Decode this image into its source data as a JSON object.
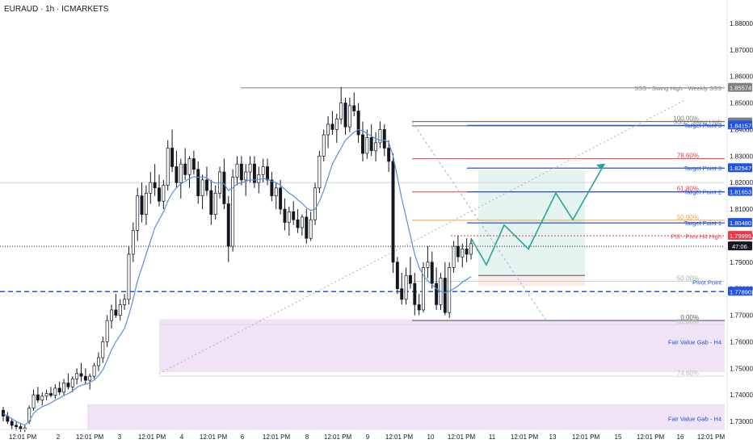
{
  "header": {
    "title": "EURAUD · 1h · ICMARKETS"
  },
  "chart_data": {
    "type": "candlestick",
    "symbol": "EURAUD",
    "timeframe": "1h",
    "exchange": "ICMARKETS",
    "ylim": [
      1.726,
      1.891
    ],
    "y_ticks": [
      "1.88000",
      "1.87000",
      "1.86000",
      "1.85000",
      "1.84000",
      "1.83000",
      "1.82000",
      "1.81000",
      "1.80000",
      "1.79000",
      "1.78000",
      "1.77000",
      "1.76000",
      "1.75000",
      "1.74000",
      "1.73000"
    ],
    "x_ticks": [
      "12:01 PM",
      "2",
      "12:01 PM",
      "3",
      "12:01 PM",
      "4",
      "12:01 PM",
      "6",
      "12:01 PM",
      "8",
      "12:01 PM",
      "9",
      "12:01 PM",
      "10",
      "12:01 PM",
      "11",
      "12:01 PM",
      "13",
      "12:01 PM",
      "15",
      "12:01 PM",
      "16",
      "12:01 PM"
    ],
    "current_price_label": "47:06",
    "colors": {
      "up": "#ffffff",
      "down": "#131722",
      "wick": "#131722",
      "ma": "#5b8fd9",
      "blue_level": "#1e53e5",
      "red_level": "#f23645",
      "orange_level": "#f2a33a",
      "fvg_fill": "#ead9f2",
      "zigzag": "#26a69a",
      "target_zone": "#e6f4f1",
      "stop_zone": "#fbecec"
    },
    "horizontal_levels": [
      {
        "name": "SSS - Swing High - Weekly SSS",
        "price": 1.85574,
        "badge": "1.85574",
        "color": "#7f7f7f"
      },
      {
        "name": "SSS - Swing High",
        "price": 1.84269,
        "badge": "1.84269",
        "color": "#7f7f7f"
      },
      {
        "name": "Target Point 3",
        "price": 1.84157,
        "badge": "1.84157",
        "color": "#1e53e5"
      },
      {
        "name": "Target Point 3",
        "price": 1.82547,
        "badge": "1.82547",
        "color": "#1e53e5"
      },
      {
        "name": "Target Point 2",
        "price": 1.81653,
        "badge": "1.81653",
        "color": "#1e53e5"
      },
      {
        "name": "Target Point 1",
        "price": 1.8048,
        "badge": "1.80480",
        "color": "#1e53e5"
      },
      {
        "name": "P0I - Prev H4 High",
        "price": 1.79995,
        "badge": "1.79995",
        "color": "#f23645"
      },
      {
        "name": "Pivot Point",
        "price": 1.7789,
        "badge": "1.77890",
        "color": "#1e53e5"
      }
    ],
    "fib_levels": [
      {
        "label": "100.00%",
        "price": 1.843,
        "color": "#7f7f7f"
      },
      {
        "label": "78.60%",
        "price": 1.829,
        "color": "#f23645"
      },
      {
        "label": "61.80%",
        "price": 1.8165,
        "color": "#f23645"
      },
      {
        "label": "50.00%",
        "price": 1.8058,
        "color": "#f2a33a"
      },
      {
        "label": "50.00%",
        "price": 1.7828,
        "color": "#aaaaaa"
      },
      {
        "label": "0.00%",
        "price": 1.768,
        "color": "#555555"
      },
      {
        "label": "61.80%",
        "price": 1.7665,
        "color": "#bbbbbb"
      },
      {
        "label": "74.60%",
        "price": 1.747,
        "color": "#bbbbbb"
      }
    ],
    "zones": [
      {
        "name": "Fair Value Gab - H4",
        "top": 1.7685,
        "bottom": 1.7486
      },
      {
        "name": "Fair Value Gab - H4",
        "top": 1.7365,
        "bottom": 1.726
      }
    ],
    "candles": [
      [
        1.7342,
        1.7355,
        1.73,
        1.732
      ],
      [
        1.732,
        1.7335,
        1.729,
        1.73
      ],
      [
        1.73,
        1.731,
        1.727,
        1.7285
      ],
      [
        1.7285,
        1.73,
        1.7265,
        1.728
      ],
      [
        1.728,
        1.729,
        1.726,
        1.727
      ],
      [
        1.727,
        1.7285,
        1.726,
        1.7275
      ],
      [
        1.73,
        1.736,
        1.729,
        1.735
      ],
      [
        1.735,
        1.742,
        1.734,
        1.74
      ],
      [
        1.74,
        1.743,
        1.737,
        1.738
      ],
      [
        1.738,
        1.741,
        1.736,
        1.7395
      ],
      [
        1.7395,
        1.742,
        1.738,
        1.7405
      ],
      [
        1.7405,
        1.743,
        1.739,
        1.7398
      ],
      [
        1.7398,
        1.744,
        1.7385,
        1.7425
      ],
      [
        1.7425,
        1.745,
        1.74,
        1.741
      ],
      [
        1.741,
        1.746,
        1.7395,
        1.7445
      ],
      [
        1.7445,
        1.748,
        1.742,
        1.743
      ],
      [
        1.743,
        1.747,
        1.741,
        1.746
      ],
      [
        1.746,
        1.75,
        1.744,
        1.748
      ],
      [
        1.748,
        1.752,
        1.745,
        1.747
      ],
      [
        1.747,
        1.75,
        1.744,
        1.7455
      ],
      [
        1.7455,
        1.748,
        1.742,
        1.747
      ],
      [
        1.747,
        1.752,
        1.746,
        1.751
      ],
      [
        1.751,
        1.756,
        1.749,
        1.754
      ],
      [
        1.754,
        1.762,
        1.752,
        1.76
      ],
      [
        1.76,
        1.77,
        1.758,
        1.768
      ],
      [
        1.768,
        1.774,
        1.765,
        1.772
      ],
      [
        1.772,
        1.778,
        1.769,
        1.77
      ],
      [
        1.77,
        1.776,
        1.768,
        1.774
      ],
      [
        1.774,
        1.778,
        1.772,
        1.776
      ],
      [
        1.776,
        1.796,
        1.774,
        1.793
      ],
      [
        1.793,
        1.805,
        1.79,
        1.802
      ],
      [
        1.802,
        1.818,
        1.798,
        1.815
      ],
      [
        1.815,
        1.82,
        1.805,
        1.808
      ],
      [
        1.808,
        1.819,
        1.804,
        1.816
      ],
      [
        1.816,
        1.824,
        1.812,
        1.82
      ],
      [
        1.82,
        1.827,
        1.815,
        1.818
      ],
      [
        1.818,
        1.823,
        1.811,
        1.813
      ],
      [
        1.813,
        1.821,
        1.81,
        1.819
      ],
      [
        1.819,
        1.836,
        1.817,
        1.833
      ],
      [
        1.833,
        1.84,
        1.824,
        1.826
      ],
      [
        1.826,
        1.832,
        1.818,
        1.82
      ],
      [
        1.82,
        1.829,
        1.814,
        1.827
      ],
      [
        1.827,
        1.833,
        1.821,
        1.823
      ],
      [
        1.823,
        1.83,
        1.818,
        1.829
      ],
      [
        1.829,
        1.832,
        1.823,
        1.825
      ],
      [
        1.825,
        1.828,
        1.812,
        1.815
      ],
      [
        1.815,
        1.823,
        1.81,
        1.821
      ],
      [
        1.821,
        1.826,
        1.815,
        1.817
      ],
      [
        1.817,
        1.821,
        1.804,
        1.808
      ],
      [
        1.808,
        1.819,
        1.806,
        1.816
      ],
      [
        1.816,
        1.826,
        1.814,
        1.824
      ],
      [
        1.824,
        1.829,
        1.81,
        1.812
      ],
      [
        1.812,
        1.815,
        1.79,
        1.796
      ],
      [
        1.796,
        1.825,
        1.794,
        1.822
      ],
      [
        1.822,
        1.83,
        1.819,
        1.827
      ],
      [
        1.827,
        1.83,
        1.819,
        1.821
      ],
      [
        1.821,
        1.827,
        1.815,
        1.824
      ],
      [
        1.824,
        1.83,
        1.82,
        1.827
      ],
      [
        1.827,
        1.83,
        1.818,
        1.82
      ],
      [
        1.82,
        1.826,
        1.816,
        1.823
      ],
      [
        1.823,
        1.829,
        1.82,
        1.826
      ],
      [
        1.826,
        1.829,
        1.819,
        1.821
      ],
      [
        1.821,
        1.824,
        1.813,
        1.815
      ],
      [
        1.815,
        1.82,
        1.81,
        1.818
      ],
      [
        1.818,
        1.821,
        1.808,
        1.81
      ],
      [
        1.81,
        1.814,
        1.802,
        1.805
      ],
      [
        1.805,
        1.811,
        1.8,
        1.809
      ],
      [
        1.809,
        1.813,
        1.804,
        1.806
      ],
      [
        1.806,
        1.81,
        1.801,
        1.803
      ],
      [
        1.803,
        1.808,
        1.8,
        1.807
      ],
      [
        1.807,
        1.81,
        1.797,
        1.799
      ],
      [
        1.799,
        1.809,
        1.798,
        1.806
      ],
      [
        1.806,
        1.82,
        1.804,
        1.818
      ],
      [
        1.818,
        1.832,
        1.816,
        1.83
      ],
      [
        1.83,
        1.84,
        1.828,
        1.838
      ],
      [
        1.838,
        1.845,
        1.833,
        1.842
      ],
      [
        1.842,
        1.847,
        1.838,
        1.84
      ],
      [
        1.84,
        1.846,
        1.835,
        1.844
      ],
      [
        1.844,
        1.856,
        1.842,
        1.85
      ],
      [
        1.85,
        1.852,
        1.838,
        1.841
      ],
      [
        1.841,
        1.852,
        1.839,
        1.849
      ],
      [
        1.849,
        1.854,
        1.845,
        1.847
      ],
      [
        1.847,
        1.85,
        1.835,
        1.838
      ],
      [
        1.838,
        1.843,
        1.828,
        1.831
      ],
      [
        1.831,
        1.84,
        1.829,
        1.837
      ],
      [
        1.837,
        1.842,
        1.83,
        1.832
      ],
      [
        1.832,
        1.839,
        1.828,
        1.835
      ],
      [
        1.835,
        1.843,
        1.833,
        1.84
      ],
      [
        1.84,
        1.842,
        1.83,
        1.833
      ],
      [
        1.833,
        1.836,
        1.824,
        1.828
      ],
      [
        1.828,
        1.831,
        1.786,
        1.79
      ],
      [
        1.79,
        1.792,
        1.778,
        1.78
      ],
      [
        1.78,
        1.786,
        1.774,
        1.776
      ],
      [
        1.776,
        1.788,
        1.774,
        1.785
      ],
      [
        1.785,
        1.792,
        1.78,
        1.782
      ],
      [
        1.782,
        1.786,
        1.77,
        1.774
      ],
      [
        1.774,
        1.778,
        1.77,
        1.772
      ],
      [
        1.772,
        1.79,
        1.771,
        1.788
      ],
      [
        1.788,
        1.796,
        1.784,
        1.79
      ],
      [
        1.79,
        1.794,
        1.78,
        1.782
      ],
      [
        1.782,
        1.788,
        1.772,
        1.774
      ],
      [
        1.774,
        1.786,
        1.772,
        1.784
      ],
      [
        1.784,
        1.79,
        1.77,
        1.771
      ],
      [
        1.771,
        1.79,
        1.769,
        1.788
      ],
      [
        1.788,
        1.798,
        1.786,
        1.796
      ],
      [
        1.796,
        1.8,
        1.79,
        1.792
      ],
      [
        1.792,
        1.797,
        1.788,
        1.795
      ],
      [
        1.795,
        1.799,
        1.79,
        1.793
      ],
      [
        1.793,
        1.799,
        1.791,
        1.797
      ]
    ],
    "moving_average": [
      1.733,
      1.732,
      1.731,
      1.73,
      1.7292,
      1.7286,
      1.73,
      1.733,
      1.7345,
      1.7355,
      1.7362,
      1.737,
      1.738,
      1.7388,
      1.7398,
      1.7405,
      1.7415,
      1.7428,
      1.7436,
      1.744,
      1.7446,
      1.7456,
      1.7472,
      1.7494,
      1.753,
      1.757,
      1.76,
      1.7625,
      1.765,
      1.77,
      1.776,
      1.783,
      1.788,
      1.793,
      1.798,
      1.803,
      1.806,
      1.809,
      1.813,
      1.816,
      1.818,
      1.8195,
      1.8205,
      1.8215,
      1.8222,
      1.822,
      1.8222,
      1.8218,
      1.8205,
      1.8198,
      1.82,
      1.8195,
      1.817,
      1.818,
      1.8195,
      1.82,
      1.8205,
      1.821,
      1.821,
      1.8212,
      1.8215,
      1.8213,
      1.8205,
      1.82,
      1.819,
      1.8175,
      1.816,
      1.815,
      1.8135,
      1.8122,
      1.8105,
      1.8095,
      1.81,
      1.813,
      1.817,
      1.822,
      1.827,
      1.83,
      1.833,
      1.836,
      1.8375,
      1.839,
      1.84,
      1.8395,
      1.8385,
      1.8375,
      1.8365,
      1.836,
      1.836,
      1.8352,
      1.83,
      1.822,
      1.814,
      1.807,
      1.8,
      1.793,
      1.788,
      1.785,
      1.783,
      1.7815,
      1.78,
      1.779,
      1.7785,
      1.779,
      1.78,
      1.781,
      1.7825,
      1.7835,
      1.7845
    ],
    "projection_path": [
      [
        1.799
      ],
      [
        1.789
      ],
      [
        1.804
      ],
      [
        1.795
      ],
      [
        1.816
      ],
      [
        1.806
      ],
      [
        1.827
      ]
    ]
  },
  "labels": {
    "sss_weekly": "SSS - Swing High - Weekly SSS",
    "sss": "SSS - Swing High",
    "tp3a": "Target Point 3",
    "tp3b": "Target Point 3",
    "tp2": "Target Point 2",
    "tp1": "Target Point 1",
    "poi": "P0I - Prev H4 High",
    "pivot": "Pivot Point",
    "fvg1": "Fair Value Gab - H4",
    "fvg2": "Fair Value Gab - H4"
  }
}
